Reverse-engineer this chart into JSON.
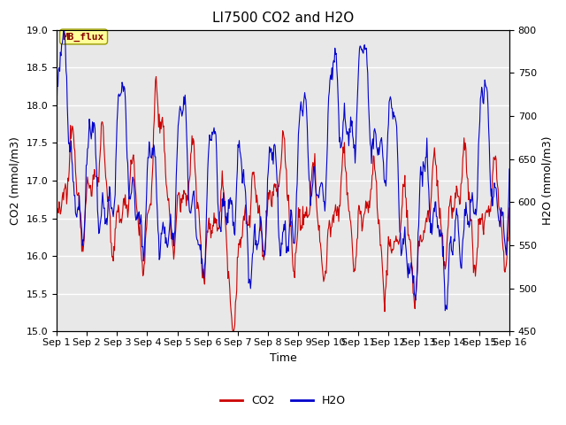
{
  "title": "LI7500 CO2 and H2O",
  "xlabel": "Time",
  "ylabel_left": "CO2 (mmol/m3)",
  "ylabel_right": "H2O (mmol/m3)",
  "legend_label": "MB_flux",
  "co2_label": "CO2",
  "h2o_label": "H2O",
  "co2_color": "#cc0000",
  "h2o_color": "#0000cc",
  "ylim_left": [
    15.0,
    19.0
  ],
  "ylim_right": [
    450,
    800
  ],
  "xtick_labels": [
    "Sep 1",
    "Sep 2",
    "Sep 3",
    "Sep 4",
    "Sep 5",
    "Sep 6",
    "Sep 7",
    "Sep 8",
    "Sep 9",
    "Sep 10",
    "Sep 11",
    "Sep 12",
    "Sep 13",
    "Sep 14",
    "Sep 15",
    "Sep 16"
  ],
  "axes_bg_color": "#e8e8e8",
  "grid_color": "#ffffff",
  "title_fontsize": 11,
  "axis_fontsize": 9,
  "tick_fontsize": 8,
  "legend_fontsize": 9
}
